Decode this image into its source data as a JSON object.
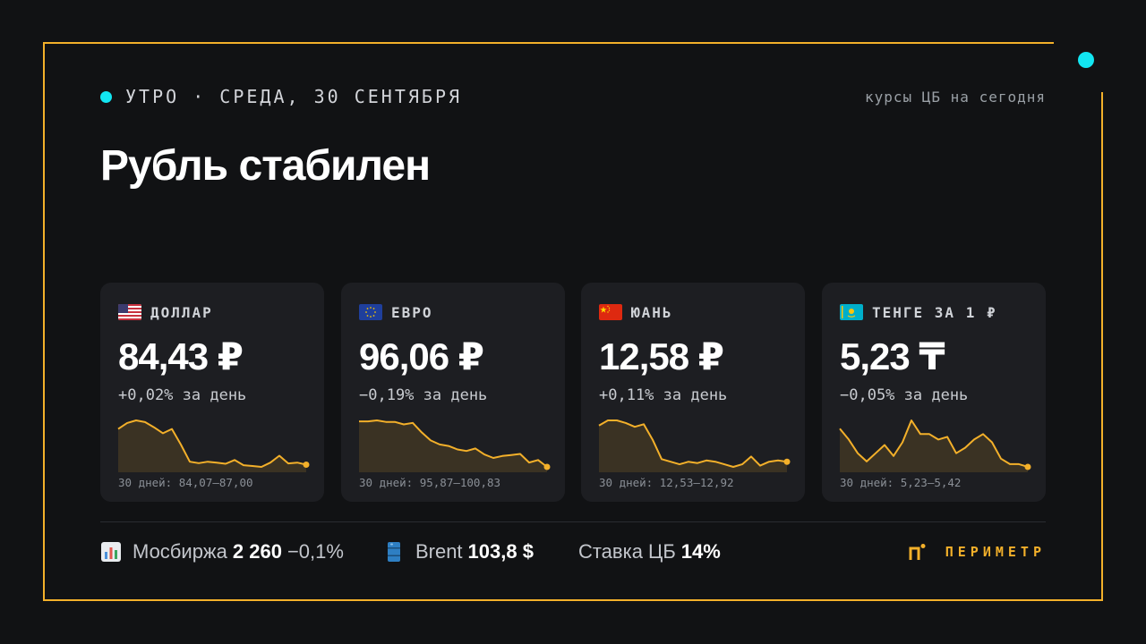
{
  "colors": {
    "accent": "#f3b02a",
    "live_dot": "#12e6f2",
    "background": "#111214",
    "card_background": "#1d1e22"
  },
  "header": {
    "kicker": "УТРО · СРЕДА, 30 СЕНТЯБРЯ",
    "source": "курсы ЦБ на сегодня"
  },
  "headline": "Рубль стабилен",
  "cards": [
    {
      "flag_icon": "us-flag-icon",
      "name": "ДОЛЛАР",
      "rate": "84,43 ₽",
      "change": "+0,02% за день",
      "range": "30 дней: 84,07–87,00",
      "series": [
        86.5,
        86.85,
        87.0,
        86.9,
        86.6,
        86.25,
        86.5,
        85.6,
        84.6,
        84.52,
        84.6,
        84.55,
        84.48,
        84.7,
        84.4,
        84.35,
        84.3,
        84.55,
        84.95,
        84.5,
        84.55,
        84.43
      ]
    },
    {
      "flag_icon": "eu-flag-icon",
      "name": "ЕВРО",
      "rate": "96,06 ₽",
      "change": "−0,19% за день",
      "range": "30 дней: 95,87–100,83",
      "series": [
        100.6,
        100.6,
        100.7,
        100.55,
        100.55,
        100.3,
        100.45,
        99.5,
        98.7,
        98.3,
        98.15,
        97.8,
        97.65,
        97.9,
        97.3,
        96.95,
        97.15,
        97.25,
        97.35,
        96.5,
        96.75,
        96.06
      ]
    },
    {
      "flag_icon": "cn-flag-icon",
      "name": "ЮАНЬ",
      "rate": "12,58 ₽",
      "change": "+0,11% за день",
      "range": "30 дней: 12,53–12,92",
      "series": [
        12.86,
        12.9,
        12.9,
        12.88,
        12.85,
        12.87,
        12.75,
        12.6,
        12.58,
        12.56,
        12.58,
        12.57,
        12.59,
        12.58,
        12.56,
        12.54,
        12.56,
        12.62,
        12.55,
        12.58,
        12.59,
        12.58
      ]
    },
    {
      "flag_icon": "kz-flag-icon",
      "name": "ТЕНГЕ ЗА 1 ₽",
      "rate": "5,23 ₸",
      "change": "−0,05% за день",
      "range": "30 дней: 5,23–5,42",
      "series": [
        5.37,
        5.33,
        5.28,
        5.25,
        5.28,
        5.31,
        5.27,
        5.32,
        5.4,
        5.35,
        5.35,
        5.33,
        5.34,
        5.28,
        5.3,
        5.33,
        5.35,
        5.32,
        5.26,
        5.24,
        5.24,
        5.23
      ]
    }
  ],
  "footer": {
    "stats": [
      {
        "icon": "bar-chart-icon",
        "label": "Мосбиржа",
        "value": "2 260",
        "change": "−0,1%"
      },
      {
        "icon": "oil-barrel-icon",
        "label": "Brent",
        "value": "103,8 $",
        "change": ""
      },
      {
        "icon": "",
        "label": "Ставка ЦБ",
        "value": "14%",
        "change": ""
      }
    ],
    "brand": "ПЕРИМЕТР"
  }
}
